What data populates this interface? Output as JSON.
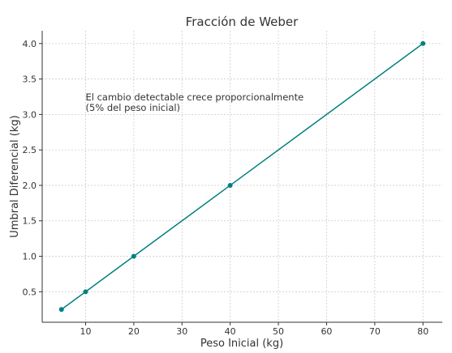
{
  "chart_data": {
    "type": "line",
    "title": "Fracción de Weber",
    "xlabel": "Peso Inicial (kg)",
    "ylabel": "Umbral Diferencial (kg)",
    "xlim": [
      1,
      84
    ],
    "ylim": [
      0.07,
      4.18
    ],
    "x_ticks": [
      10,
      20,
      30,
      40,
      50,
      60,
      70,
      80
    ],
    "y_ticks": [
      0.5,
      1.0,
      1.5,
      2.0,
      2.5,
      3.0,
      3.5,
      4.0
    ],
    "x_tick_labels": [
      "10",
      "20",
      "30",
      "40",
      "50",
      "60",
      "70",
      "80"
    ],
    "y_tick_labels": [
      "0.5",
      "1.0",
      "1.5",
      "2.0",
      "2.5",
      "3.0",
      "3.5",
      "4.0"
    ],
    "grid": true,
    "series": [
      {
        "x": [
          5,
          10,
          20,
          40,
          80
        ],
        "values": [
          0.25,
          0.5,
          1.0,
          2.0,
          4.0
        ],
        "color": "#008080",
        "marker": "circle"
      }
    ],
    "annotations": [
      {
        "lines": [
          "El cambio detectable crece proporcionalmente",
          "(5% del peso inicial)"
        ],
        "x": 10,
        "y": 3.2
      }
    ]
  }
}
